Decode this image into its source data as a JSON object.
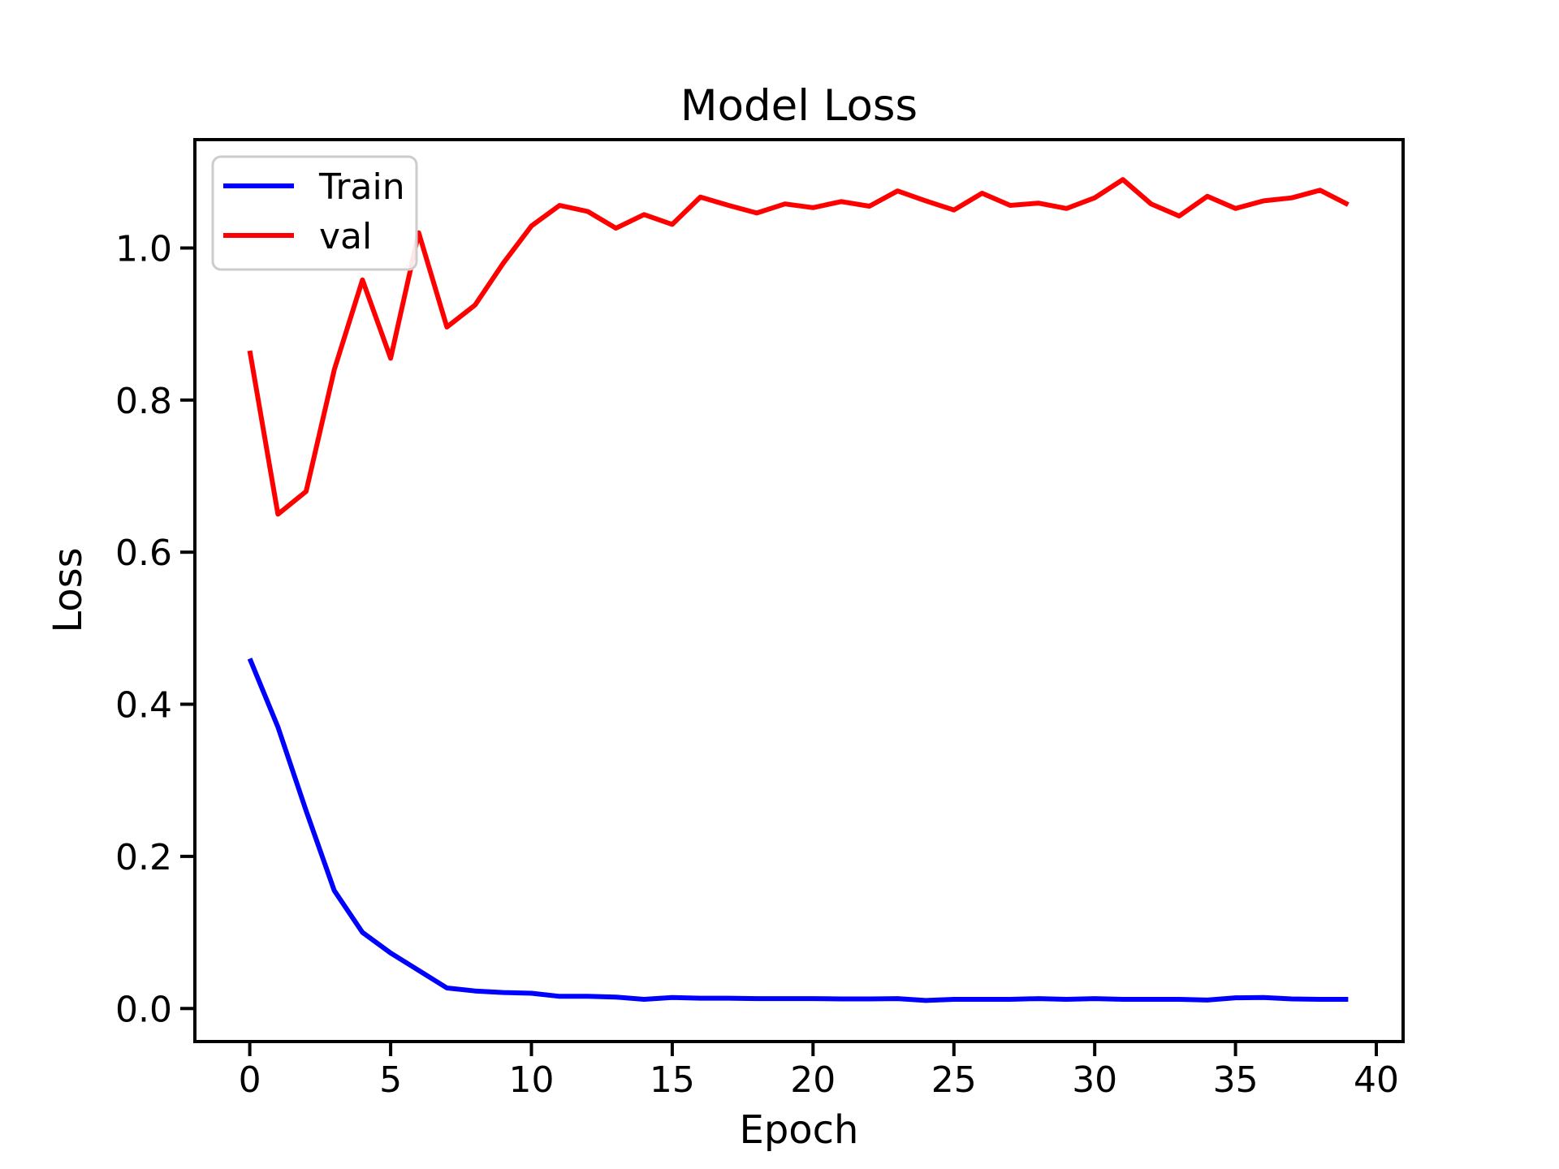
{
  "figure": {
    "background": "#ffffff",
    "frame_color": "#000000"
  },
  "chart_data": {
    "type": "line",
    "title": "Model Loss",
    "xlabel": "Epoch",
    "ylabel": "Loss",
    "grid": false,
    "legend": {
      "position": "upper left",
      "entries": [
        "Train",
        "val"
      ]
    },
    "xlim": [
      -1.95,
      40.95
    ],
    "ylim": [
      -0.0435,
      1.1425
    ],
    "x_ticks": [
      {
        "label": "0",
        "value": 0
      },
      {
        "label": "5",
        "value": 5
      },
      {
        "label": "10",
        "value": 10
      },
      {
        "label": "15",
        "value": 15
      },
      {
        "label": "20",
        "value": 20
      },
      {
        "label": "25",
        "value": 25
      },
      {
        "label": "30",
        "value": 30
      },
      {
        "label": "35",
        "value": 35
      },
      {
        "label": "40",
        "value": 40
      }
    ],
    "y_ticks": [
      {
        "label": "0.0",
        "value": 0.0
      },
      {
        "label": "0.2",
        "value": 0.2
      },
      {
        "label": "0.4",
        "value": 0.4
      },
      {
        "label": "0.6",
        "value": 0.6
      },
      {
        "label": "0.8",
        "value": 0.8
      },
      {
        "label": "1.0",
        "value": 1.0
      }
    ],
    "x": [
      0,
      1,
      2,
      3,
      4,
      5,
      6,
      7,
      8,
      9,
      10,
      11,
      12,
      13,
      14,
      15,
      16,
      17,
      18,
      19,
      20,
      21,
      22,
      23,
      24,
      25,
      26,
      27,
      28,
      29,
      30,
      31,
      32,
      33,
      34,
      35,
      36,
      37,
      38,
      39
    ],
    "series": [
      {
        "name": "Train",
        "color": "#0000ff",
        "values": [
          0.46,
          0.37,
          0.26,
          0.155,
          0.1,
          0.073,
          0.05,
          0.027,
          0.023,
          0.021,
          0.02,
          0.016,
          0.016,
          0.015,
          0.012,
          0.0145,
          0.0135,
          0.0135,
          0.013,
          0.013,
          0.013,
          0.0125,
          0.0125,
          0.013,
          0.0105,
          0.012,
          0.012,
          0.012,
          0.013,
          0.012,
          0.013,
          0.012,
          0.012,
          0.012,
          0.011,
          0.014,
          0.0145,
          0.0125,
          0.012,
          0.012
        ]
      },
      {
        "name": "val",
        "color": "#ff0000",
        "values": [
          0.865,
          0.65,
          0.68,
          0.84,
          0.958,
          0.855,
          1.02,
          0.896,
          0.925,
          0.98,
          1.029,
          1.056,
          1.048,
          1.026,
          1.044,
          1.031,
          1.067,
          1.056,
          1.046,
          1.058,
          1.053,
          1.061,
          1.055,
          1.075,
          1.062,
          1.05,
          1.072,
          1.056,
          1.059,
          1.052,
          1.066,
          1.09,
          1.058,
          1.042,
          1.068,
          1.052,
          1.062,
          1.066,
          1.076,
          1.057
        ]
      }
    ]
  }
}
